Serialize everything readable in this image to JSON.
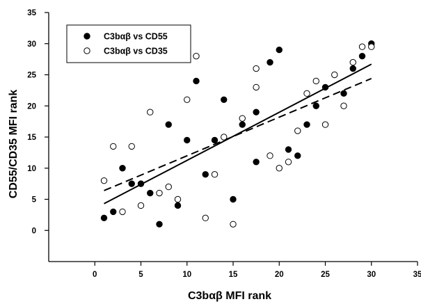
{
  "chart_data": {
    "type": "scatter",
    "title": "",
    "xlabel": "C3bαβ MFI rank",
    "ylabel": "CD55/CD35 MFI rank",
    "xlim": [
      -5,
      35
    ],
    "ylim": [
      -5,
      35
    ],
    "xticks": [
      "0",
      "5",
      "10",
      "15",
      "20",
      "25",
      "30",
      "35"
    ],
    "yticks": [
      "0",
      "5",
      "10",
      "15",
      "20",
      "25",
      "30",
      "35"
    ],
    "xtick_values": [
      0,
      5,
      10,
      15,
      20,
      25,
      30,
      35
    ],
    "ytick_values": [
      0,
      5,
      10,
      15,
      20,
      25,
      30,
      35
    ],
    "grid": false,
    "legend_position": "top-left",
    "series": [
      {
        "name": "C3bαβ vs CD55",
        "marker": "filled-circle",
        "color": "#000000",
        "points": [
          [
            1,
            2
          ],
          [
            2,
            3
          ],
          [
            3,
            10
          ],
          [
            4,
            7.5
          ],
          [
            5,
            7.5
          ],
          [
            6,
            6
          ],
          [
            7,
            1
          ],
          [
            8,
            17
          ],
          [
            9,
            4
          ],
          [
            10,
            14.5
          ],
          [
            11,
            24
          ],
          [
            12,
            9
          ],
          [
            13,
            14.5
          ],
          [
            14,
            21
          ],
          [
            15,
            5
          ],
          [
            16,
            17
          ],
          [
            17.5,
            19
          ],
          [
            17.5,
            11
          ],
          [
            19,
            27
          ],
          [
            20,
            29
          ],
          [
            21,
            13
          ],
          [
            22,
            12
          ],
          [
            23,
            17
          ],
          [
            24,
            20
          ],
          [
            25,
            23
          ],
          [
            27,
            22
          ],
          [
            28,
            26
          ],
          [
            29,
            28
          ],
          [
            30,
            30
          ]
        ],
        "fit": {
          "style": "solid",
          "x": [
            1,
            30
          ],
          "y": [
            4.3,
            26.7
          ]
        }
      },
      {
        "name": "C3bαβ vs CD35",
        "marker": "open-circle",
        "color": "#000000",
        "points": [
          [
            1,
            8
          ],
          [
            2,
            13.5
          ],
          [
            3,
            3
          ],
          [
            4,
            13.5
          ],
          [
            5,
            4
          ],
          [
            6,
            19
          ],
          [
            7,
            6
          ],
          [
            8,
            7
          ],
          [
            9,
            5
          ],
          [
            10,
            21
          ],
          [
            11,
            28
          ],
          [
            12,
            2
          ],
          [
            13,
            9
          ],
          [
            14,
            15
          ],
          [
            15,
            1
          ],
          [
            16,
            18
          ],
          [
            17.5,
            26
          ],
          [
            17.5,
            23
          ],
          [
            19,
            12
          ],
          [
            20,
            10
          ],
          [
            21,
            11
          ],
          [
            22,
            16
          ],
          [
            23,
            22
          ],
          [
            24,
            24
          ],
          [
            25,
            17
          ],
          [
            26,
            25
          ],
          [
            27,
            20
          ],
          [
            28,
            27
          ],
          [
            29,
            29.5
          ],
          [
            30,
            29.5
          ]
        ],
        "fit": {
          "style": "dashed",
          "x": [
            1,
            30
          ],
          "y": [
            6.4,
            24.4
          ]
        }
      }
    ]
  }
}
